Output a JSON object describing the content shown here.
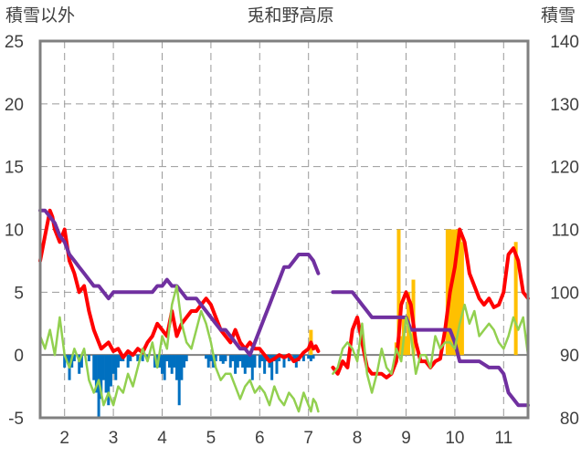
{
  "chart_data": {
    "type": "line",
    "title": "兎和野高原",
    "ylabel_left": "積雪以外",
    "ylabel_right": "積雪",
    "x_ticks": [
      "2",
      "3",
      "4",
      "5",
      "6",
      "7",
      "8",
      "9",
      "10",
      "11"
    ],
    "xlim": [
      1.5,
      11.5
    ],
    "ylim_left": [
      -5,
      25
    ],
    "ylim_right": [
      80,
      140
    ],
    "y_ticks_left": [
      "-5",
      "0",
      "5",
      "10",
      "15",
      "20",
      "25"
    ],
    "y_ticks_right": [
      "80",
      "90",
      "100",
      "110",
      "120",
      "130",
      "140"
    ],
    "grid": "dashed",
    "colors": {
      "red": "#ff0000",
      "purple": "#7030a0",
      "green": "#92d050",
      "blue": "#0070c0",
      "orange": "#ffc000"
    },
    "series": [
      {
        "color": "red",
        "axis": "left",
        "kind": "line",
        "x": [
          1.5,
          1.6,
          1.7,
          1.75,
          1.8,
          1.9,
          2.0,
          2.1,
          2.2,
          2.3,
          2.4,
          2.5,
          2.6,
          2.75,
          2.9,
          3.0,
          3.1,
          3.2,
          3.3,
          3.4,
          3.5,
          3.6,
          3.7,
          3.8,
          3.9,
          4.0,
          4.1,
          4.2,
          4.3,
          4.4,
          4.5,
          4.6,
          4.7,
          4.8,
          4.9,
          5.0,
          5.1,
          5.2,
          5.3,
          5.4,
          5.5,
          5.6,
          5.7,
          5.8,
          5.9,
          6.0,
          6.1,
          6.2,
          6.3,
          6.4,
          6.5,
          6.6,
          6.7,
          6.8,
          6.9,
          7.0,
          7.05,
          7.1,
          7.15,
          7.2
        ],
        "y": [
          7.5,
          9.5,
          11.5,
          11.0,
          10.0,
          9.0,
          10.0,
          7.5,
          6.5,
          5.0,
          5.5,
          3.5,
          2.0,
          0.5,
          1.0,
          0.3,
          0.5,
          -0.2,
          0.3,
          0.0,
          0.5,
          0.2,
          1.0,
          1.5,
          2.5,
          2.0,
          1.5,
          3.5,
          1.5,
          2.5,
          3.0,
          3.5,
          3.5,
          4.0,
          4.5,
          4.0,
          3.0,
          2.0,
          1.5,
          1.0,
          2.0,
          1.0,
          0.5,
          1.0,
          0.5,
          0.5,
          0.0,
          -0.5,
          -0.3,
          0.0,
          -0.2,
          0.0,
          -0.5,
          -0.3,
          0.2,
          0.5,
          1.0,
          0.5,
          0.7,
          0.3
        ]
      },
      {
        "color": "red",
        "axis": "left",
        "kind": "line",
        "x": [
          7.5,
          7.6,
          7.7,
          7.8,
          7.9,
          8.0,
          8.1,
          8.2,
          8.3,
          8.4,
          8.5,
          8.6,
          8.7,
          8.8,
          8.85,
          8.9,
          9.0,
          9.1,
          9.2,
          9.3,
          9.4,
          9.5,
          9.6,
          9.7,
          9.8,
          9.9,
          10.0,
          10.1,
          10.2,
          10.3,
          10.4,
          10.5,
          10.6,
          10.7,
          10.8,
          10.9,
          11.0,
          11.1,
          11.2,
          11.3,
          11.4,
          11.5
        ],
        "y": [
          -1.0,
          -1.5,
          -0.5,
          -1.0,
          2.0,
          3.0,
          1.0,
          -1.0,
          -1.5,
          -1.5,
          -1.5,
          -1.8,
          -1.5,
          -0.5,
          1.5,
          4.0,
          5.0,
          4.0,
          1.0,
          -0.5,
          -0.5,
          -1.0,
          -0.5,
          -0.3,
          2.0,
          5.0,
          7.0,
          10.0,
          9.0,
          6.5,
          5.5,
          4.5,
          4.0,
          4.5,
          3.8,
          4.0,
          5.0,
          8.0,
          8.5,
          7.5,
          5.0,
          4.5
        ]
      },
      {
        "color": "purple",
        "axis": "right",
        "kind": "line",
        "x": [
          1.5,
          1.6,
          1.7,
          1.8,
          1.9,
          2.0,
          2.1,
          2.2,
          2.3,
          2.4,
          2.5,
          2.6,
          2.7,
          2.8,
          2.9,
          3.0,
          3.1,
          3.5,
          3.6,
          3.8,
          3.9,
          4.0,
          4.1,
          4.2,
          4.3,
          4.4,
          4.5,
          4.6,
          4.7,
          4.8,
          4.9,
          5.0,
          5.1,
          5.2,
          5.3,
          5.4,
          5.5,
          5.6,
          5.7,
          5.8,
          5.9,
          6.0,
          6.1,
          6.2,
          6.3,
          6.4,
          6.5,
          6.6,
          6.7,
          6.8,
          6.9,
          7.0,
          7.1,
          7.2
        ],
        "y": [
          113,
          113,
          112,
          111,
          109,
          108,
          106,
          105,
          104,
          103,
          102,
          101,
          101,
          100,
          99,
          100,
          100,
          100,
          100,
          100,
          101,
          101,
          102,
          101,
          101,
          100,
          99,
          99,
          99,
          98,
          97,
          96,
          95,
          94,
          94,
          93,
          92,
          91,
          91,
          90,
          92,
          94,
          96,
          98,
          100,
          102,
          104,
          104,
          105,
          106,
          106,
          106,
          105,
          103
        ]
      },
      {
        "color": "purple",
        "axis": "right",
        "kind": "line",
        "x": [
          7.5,
          7.9,
          8.0,
          8.1,
          8.2,
          8.3,
          8.4,
          8.5,
          8.6,
          8.8,
          8.9,
          9.0,
          9.05,
          9.1,
          9.4,
          9.9,
          10.0,
          10.1,
          10.4,
          10.5,
          10.7,
          10.9,
          11.0,
          11.1,
          11.2,
          11.3,
          11.4,
          11.5
        ],
        "y": [
          100,
          100,
          99,
          98,
          97,
          96,
          96,
          96,
          96,
          96,
          96,
          96,
          95,
          94,
          94,
          94,
          92,
          89,
          89,
          89,
          88,
          88,
          87,
          84,
          83,
          82,
          82,
          82
        ]
      },
      {
        "color": "green",
        "axis": "left",
        "kind": "line",
        "x": [
          1.5,
          1.6,
          1.7,
          1.8,
          1.9,
          2.0,
          2.1,
          2.2,
          2.3,
          2.4,
          2.5,
          2.6,
          2.7,
          2.8,
          2.9,
          3.0,
          3.1,
          3.2,
          3.3,
          3.4,
          3.5,
          3.6,
          3.7,
          3.8,
          3.9,
          4.0,
          4.1,
          4.2,
          4.3,
          4.4,
          4.5,
          4.6,
          4.7,
          4.8,
          4.9,
          5.0,
          5.1,
          5.2,
          5.3,
          5.4,
          5.5,
          5.6,
          5.7,
          5.8,
          5.9,
          6.0,
          6.1,
          6.2,
          6.3,
          6.4,
          6.5,
          6.6,
          6.7,
          6.8,
          6.9,
          7.0,
          7.05,
          7.1,
          7.15,
          7.2
        ],
        "y": [
          1.5,
          0.5,
          2.0,
          0.0,
          3.0,
          0.0,
          -1.0,
          0.5,
          -0.5,
          0.5,
          -2.0,
          -3.0,
          -2.0,
          -4.0,
          -3.0,
          -4.0,
          -2.5,
          -3.0,
          -1.5,
          -2.5,
          -1.0,
          0.5,
          -0.5,
          1.0,
          -1.0,
          1.5,
          0.5,
          4.0,
          5.5,
          2.5,
          1.0,
          0.5,
          2.0,
          3.5,
          2.5,
          1.0,
          -1.0,
          -2.0,
          -1.5,
          -1.5,
          -2.5,
          -3.5,
          -2.5,
          -2.0,
          -3.0,
          -2.5,
          -3.0,
          -4.0,
          -2.5,
          -3.5,
          -4.0,
          -3.0,
          -3.5,
          -4.5,
          -3.0,
          -4.0,
          -4.5,
          -3.5,
          -3.8,
          -4.5
        ]
      },
      {
        "color": "green",
        "axis": "left",
        "kind": "line",
        "x": [
          7.5,
          7.6,
          7.7,
          7.8,
          7.9,
          8.0,
          8.1,
          8.2,
          8.3,
          8.4,
          8.5,
          8.6,
          8.7,
          8.8,
          8.9,
          9.0,
          9.1,
          9.2,
          9.3,
          9.4,
          9.5,
          9.6,
          9.7,
          9.8,
          9.9,
          10.0,
          10.1,
          10.2,
          10.3,
          10.4,
          10.5,
          10.6,
          10.7,
          10.8,
          10.9,
          11.0,
          11.1,
          11.2,
          11.3,
          11.4,
          11.5
        ],
        "y": [
          -1.5,
          -1.0,
          0.5,
          1.0,
          0.5,
          -0.5,
          2.5,
          -1.5,
          -3.0,
          -1.5,
          0.5,
          -1.0,
          -1.5,
          0.5,
          -0.5,
          3.0,
          1.5,
          -1.5,
          0.0,
          0.0,
          -1.0,
          1.5,
          0.5,
          1.0,
          1.0,
          0.5,
          2.5,
          4.0,
          2.5,
          3.5,
          1.5,
          2.0,
          2.5,
          2.0,
          1.0,
          0.5,
          1.5,
          3.0,
          2.0,
          3.0,
          0.0
        ]
      },
      {
        "color": "blue",
        "axis": "left",
        "kind": "bar",
        "x": [
          2.0,
          2.05,
          2.1,
          2.15,
          2.2,
          2.3,
          2.35,
          2.5,
          2.6,
          2.65,
          2.7,
          2.75,
          2.8,
          2.85,
          2.9,
          2.95,
          3.0,
          3.05,
          3.1,
          3.15,
          3.2,
          3.3,
          3.35,
          3.5,
          3.6,
          3.7,
          3.85,
          3.9,
          3.95,
          4.0,
          4.05,
          4.1,
          4.15,
          4.2,
          4.25,
          4.3,
          4.35,
          4.4,
          4.45,
          4.5,
          4.9,
          4.95,
          5.0,
          5.05,
          5.1,
          5.2,
          5.25,
          5.3,
          5.4,
          5.45,
          5.5,
          5.55,
          5.6,
          5.65,
          5.7,
          5.75,
          5.8,
          5.85,
          5.9,
          6.0,
          6.05,
          6.1,
          6.15,
          6.2,
          6.25,
          6.3,
          6.35,
          6.4,
          6.5,
          6.6,
          6.7,
          6.75,
          6.8,
          6.9,
          7.0,
          7.05,
          7.1
        ],
        "y": [
          -1.0,
          -0.5,
          -2.0,
          -1.0,
          -0.5,
          -1.5,
          -1.0,
          -0.5,
          -2.0,
          -3.0,
          -5.0,
          -3.5,
          -2.0,
          -3.0,
          -4.0,
          -2.5,
          -1.5,
          -2.0,
          -1.0,
          -0.5,
          -0.5,
          -1.0,
          -0.5,
          -0.5,
          -0.5,
          -0.5,
          -1.0,
          -0.5,
          -1.0,
          -1.5,
          -2.0,
          -0.5,
          -1.0,
          -1.5,
          -1.0,
          -2.0,
          -4.0,
          -2.0,
          -1.0,
          -0.5,
          -0.3,
          -1.0,
          -0.5,
          -1.0,
          -0.5,
          -0.5,
          -0.7,
          -0.5,
          -1.0,
          -0.5,
          -1.5,
          -1.0,
          -0.5,
          -1.0,
          -1.5,
          -1.0,
          -1.0,
          -2.0,
          -1.0,
          -1.0,
          -0.5,
          -1.5,
          -0.5,
          -1.0,
          -2.0,
          -0.5,
          -1.5,
          -0.5,
          -1.0,
          -0.5,
          -0.5,
          -1.0,
          -0.5,
          -0.5,
          -0.3,
          -0.5,
          -0.3
        ]
      },
      {
        "color": "orange",
        "axis": "left",
        "kind": "bar",
        "x": [
          7.05,
          8.8,
          8.85,
          8.9,
          8.95,
          9.0,
          9.05,
          9.15,
          9.85,
          9.9,
          9.95,
          10.0,
          10.05,
          10.1,
          10.15,
          11.25
        ],
        "y": [
          2.0,
          1.0,
          10.0,
          1.5,
          3.0,
          1.5,
          5.0,
          6.0,
          10.0,
          10.0,
          10.0,
          10.0,
          10.0,
          10.0,
          9.0,
          9.0
        ]
      }
    ]
  }
}
